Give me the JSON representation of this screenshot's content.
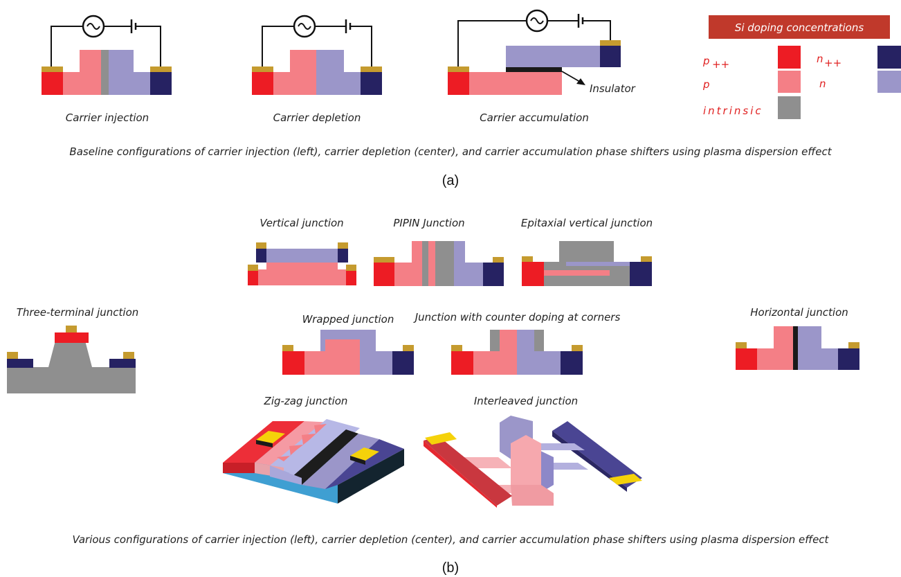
{
  "panel_a": {
    "labels": {
      "injection": "Carrier injection",
      "depletion": "Carrier depletion",
      "accumulation": "Carrier accumulation",
      "insulator": "Insulator"
    },
    "caption": "Baseline configurations of carrier injection (left), carrier depletion (center), and carrier accumulation phase shifters using plasma dispersion effect",
    "sublabel": "(a)"
  },
  "legend": {
    "title": "Si doping concentrations",
    "p_pp": "p",
    "p_pp_sub": "++",
    "n_pp": "n",
    "n_pp_sub": "++",
    "p": "p",
    "n": "n",
    "intrinsic": "intrinsic"
  },
  "panel_b": {
    "labels": {
      "vertical": "Vertical junction",
      "pipin": "PIPIN Junction",
      "epitaxial": "Epitaxial vertical junction",
      "three_terminal": "Three-terminal junction",
      "wrapped": "Wrapped junction",
      "counter": "Junction with counter doping at corners",
      "horizontal": "Horizontal junction",
      "zigzag": "Zig-zag junction",
      "interleaved": "Interleaved junction"
    },
    "caption": "Various configurations of carrier injection (left), carrier depletion (center), and carrier accumulation phase shifters using plasma dispersion effect",
    "sublabel": "(b)"
  },
  "colors": {
    "p_plus_plus": "#ed1c24",
    "p": "#f47f86",
    "intrinsic": "#8f8f8f",
    "n": "#9b96c9",
    "n_plus_plus": "#262262",
    "contact": "#c59b2f",
    "insulator": "#1a1a1a",
    "legend_header": "#c0392b"
  }
}
